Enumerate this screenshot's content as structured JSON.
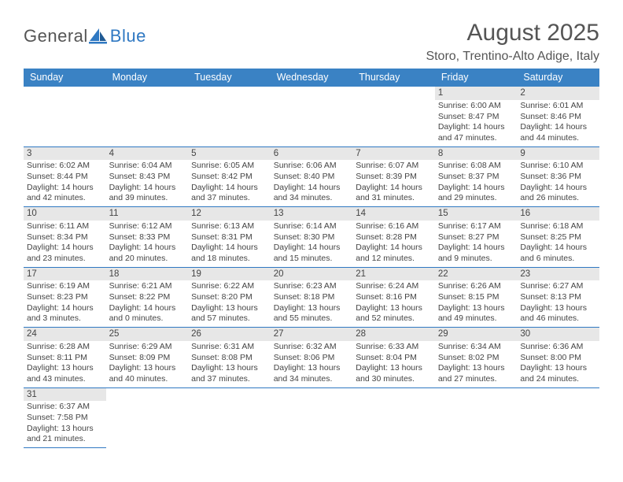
{
  "logo": {
    "general": "General",
    "blue": "Blue"
  },
  "title": "August 2025",
  "subtitle": "Storo, Trentino-Alto Adige, Italy",
  "colors": {
    "header_bg": "#3a82c4",
    "accent": "#2f78c2",
    "daynum_bg": "#e7e7e7",
    "text": "#444444",
    "page_bg": "#ffffff"
  },
  "day_headers": [
    "Sunday",
    "Monday",
    "Tuesday",
    "Wednesday",
    "Thursday",
    "Friday",
    "Saturday"
  ],
  "weeks": [
    [
      null,
      null,
      null,
      null,
      null,
      {
        "n": "1",
        "sr": "Sunrise: 6:00 AM",
        "ss": "Sunset: 8:47 PM",
        "d1": "Daylight: 14 hours",
        "d2": "and 47 minutes."
      },
      {
        "n": "2",
        "sr": "Sunrise: 6:01 AM",
        "ss": "Sunset: 8:46 PM",
        "d1": "Daylight: 14 hours",
        "d2": "and 44 minutes."
      }
    ],
    [
      {
        "n": "3",
        "sr": "Sunrise: 6:02 AM",
        "ss": "Sunset: 8:44 PM",
        "d1": "Daylight: 14 hours",
        "d2": "and 42 minutes."
      },
      {
        "n": "4",
        "sr": "Sunrise: 6:04 AM",
        "ss": "Sunset: 8:43 PM",
        "d1": "Daylight: 14 hours",
        "d2": "and 39 minutes."
      },
      {
        "n": "5",
        "sr": "Sunrise: 6:05 AM",
        "ss": "Sunset: 8:42 PM",
        "d1": "Daylight: 14 hours",
        "d2": "and 37 minutes."
      },
      {
        "n": "6",
        "sr": "Sunrise: 6:06 AM",
        "ss": "Sunset: 8:40 PM",
        "d1": "Daylight: 14 hours",
        "d2": "and 34 minutes."
      },
      {
        "n": "7",
        "sr": "Sunrise: 6:07 AM",
        "ss": "Sunset: 8:39 PM",
        "d1": "Daylight: 14 hours",
        "d2": "and 31 minutes."
      },
      {
        "n": "8",
        "sr": "Sunrise: 6:08 AM",
        "ss": "Sunset: 8:37 PM",
        "d1": "Daylight: 14 hours",
        "d2": "and 29 minutes."
      },
      {
        "n": "9",
        "sr": "Sunrise: 6:10 AM",
        "ss": "Sunset: 8:36 PM",
        "d1": "Daylight: 14 hours",
        "d2": "and 26 minutes."
      }
    ],
    [
      {
        "n": "10",
        "sr": "Sunrise: 6:11 AM",
        "ss": "Sunset: 8:34 PM",
        "d1": "Daylight: 14 hours",
        "d2": "and 23 minutes."
      },
      {
        "n": "11",
        "sr": "Sunrise: 6:12 AM",
        "ss": "Sunset: 8:33 PM",
        "d1": "Daylight: 14 hours",
        "d2": "and 20 minutes."
      },
      {
        "n": "12",
        "sr": "Sunrise: 6:13 AM",
        "ss": "Sunset: 8:31 PM",
        "d1": "Daylight: 14 hours",
        "d2": "and 18 minutes."
      },
      {
        "n": "13",
        "sr": "Sunrise: 6:14 AM",
        "ss": "Sunset: 8:30 PM",
        "d1": "Daylight: 14 hours",
        "d2": "and 15 minutes."
      },
      {
        "n": "14",
        "sr": "Sunrise: 6:16 AM",
        "ss": "Sunset: 8:28 PM",
        "d1": "Daylight: 14 hours",
        "d2": "and 12 minutes."
      },
      {
        "n": "15",
        "sr": "Sunrise: 6:17 AM",
        "ss": "Sunset: 8:27 PM",
        "d1": "Daylight: 14 hours",
        "d2": "and 9 minutes."
      },
      {
        "n": "16",
        "sr": "Sunrise: 6:18 AM",
        "ss": "Sunset: 8:25 PM",
        "d1": "Daylight: 14 hours",
        "d2": "and 6 minutes."
      }
    ],
    [
      {
        "n": "17",
        "sr": "Sunrise: 6:19 AM",
        "ss": "Sunset: 8:23 PM",
        "d1": "Daylight: 14 hours",
        "d2": "and 3 minutes."
      },
      {
        "n": "18",
        "sr": "Sunrise: 6:21 AM",
        "ss": "Sunset: 8:22 PM",
        "d1": "Daylight: 14 hours",
        "d2": "and 0 minutes."
      },
      {
        "n": "19",
        "sr": "Sunrise: 6:22 AM",
        "ss": "Sunset: 8:20 PM",
        "d1": "Daylight: 13 hours",
        "d2": "and 57 minutes."
      },
      {
        "n": "20",
        "sr": "Sunrise: 6:23 AM",
        "ss": "Sunset: 8:18 PM",
        "d1": "Daylight: 13 hours",
        "d2": "and 55 minutes."
      },
      {
        "n": "21",
        "sr": "Sunrise: 6:24 AM",
        "ss": "Sunset: 8:16 PM",
        "d1": "Daylight: 13 hours",
        "d2": "and 52 minutes."
      },
      {
        "n": "22",
        "sr": "Sunrise: 6:26 AM",
        "ss": "Sunset: 8:15 PM",
        "d1": "Daylight: 13 hours",
        "d2": "and 49 minutes."
      },
      {
        "n": "23",
        "sr": "Sunrise: 6:27 AM",
        "ss": "Sunset: 8:13 PM",
        "d1": "Daylight: 13 hours",
        "d2": "and 46 minutes."
      }
    ],
    [
      {
        "n": "24",
        "sr": "Sunrise: 6:28 AM",
        "ss": "Sunset: 8:11 PM",
        "d1": "Daylight: 13 hours",
        "d2": "and 43 minutes."
      },
      {
        "n": "25",
        "sr": "Sunrise: 6:29 AM",
        "ss": "Sunset: 8:09 PM",
        "d1": "Daylight: 13 hours",
        "d2": "and 40 minutes."
      },
      {
        "n": "26",
        "sr": "Sunrise: 6:31 AM",
        "ss": "Sunset: 8:08 PM",
        "d1": "Daylight: 13 hours",
        "d2": "and 37 minutes."
      },
      {
        "n": "27",
        "sr": "Sunrise: 6:32 AM",
        "ss": "Sunset: 8:06 PM",
        "d1": "Daylight: 13 hours",
        "d2": "and 34 minutes."
      },
      {
        "n": "28",
        "sr": "Sunrise: 6:33 AM",
        "ss": "Sunset: 8:04 PM",
        "d1": "Daylight: 13 hours",
        "d2": "and 30 minutes."
      },
      {
        "n": "29",
        "sr": "Sunrise: 6:34 AM",
        "ss": "Sunset: 8:02 PM",
        "d1": "Daylight: 13 hours",
        "d2": "and 27 minutes."
      },
      {
        "n": "30",
        "sr": "Sunrise: 6:36 AM",
        "ss": "Sunset: 8:00 PM",
        "d1": "Daylight: 13 hours",
        "d2": "and 24 minutes."
      }
    ],
    [
      {
        "n": "31",
        "sr": "Sunrise: 6:37 AM",
        "ss": "Sunset: 7:58 PM",
        "d1": "Daylight: 13 hours",
        "d2": "and 21 minutes."
      },
      null,
      null,
      null,
      null,
      null,
      null
    ]
  ]
}
